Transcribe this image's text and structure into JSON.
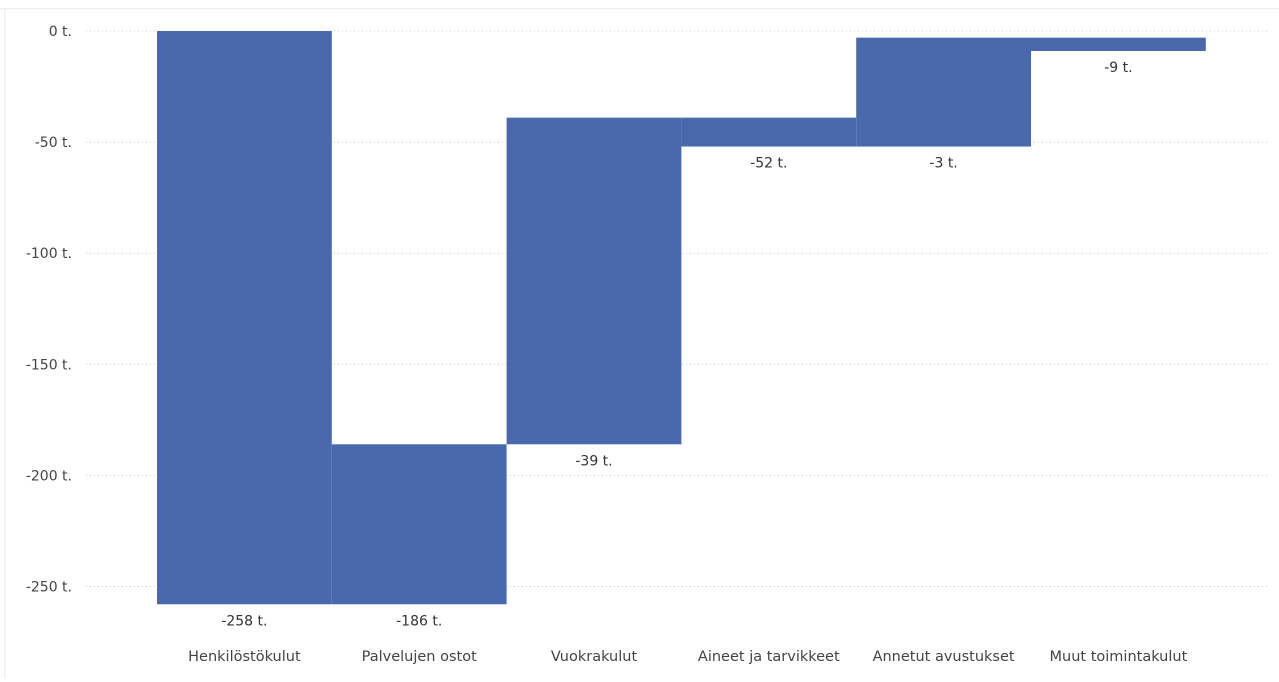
{
  "colors": {
    "bar": "#4a69ad",
    "grid": "#c8c8c8",
    "text": "#444444",
    "background": "#ffffff"
  },
  "chart_data": {
    "type": "bar",
    "variant": "waterfall",
    "title": "",
    "xlabel": "",
    "ylabel": "",
    "ylim": [
      -265,
      0
    ],
    "grid": true,
    "legend": "none",
    "y_ticks": [
      0,
      -50,
      -100,
      -150,
      -200,
      -250
    ],
    "y_tick_labels": [
      "0 t.",
      "-50 t.",
      "-100 t.",
      "-150 t.",
      "-200 t.",
      "-250 t."
    ],
    "categories": [
      "Henkilöstökulut",
      "Palvelujen ostot",
      "Vuokrakulut",
      "Aineet ja tarvikkeet",
      "Annetut avustukset",
      "Muut toimintakulut"
    ],
    "bars": [
      {
        "start": 0,
        "end": -258
      },
      {
        "start": -258,
        "end": -186
      },
      {
        "start": -186,
        "end": -39
      },
      {
        "start": -39,
        "end": -52
      },
      {
        "start": -52,
        "end": -3
      },
      {
        "start": -3,
        "end": -9
      }
    ],
    "data_labels": [
      "-258 t.",
      "-186 t.",
      "-39 t.",
      "-52 t.",
      "-3 t.",
      "-9 t."
    ]
  }
}
